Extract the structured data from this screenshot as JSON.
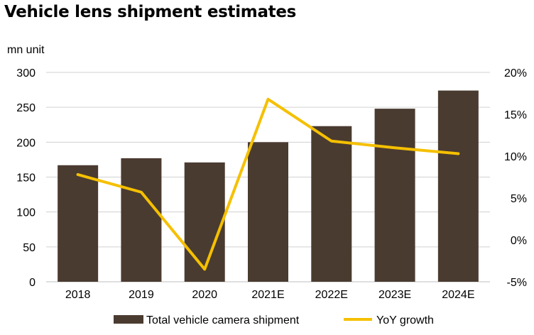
{
  "chart_data": {
    "type": "bar",
    "title": "Vehicle lens shipment estimates",
    "ylabel": "mn unit",
    "categories": [
      "2018",
      "2019",
      "2020",
      "2021E",
      "2022E",
      "2023E",
      "2024E"
    ],
    "series": [
      {
        "name": "Total vehicle camera shipment",
        "type": "bar",
        "axis": "left",
        "values": [
          167,
          177,
          171,
          200,
          223,
          248,
          274
        ],
        "color": "#4a3b30"
      },
      {
        "name": "YoY growth",
        "type": "line",
        "axis": "right",
        "values": [
          7.8,
          5.7,
          -3.5,
          16.8,
          11.8,
          11.0,
          10.3
        ],
        "color": "#f5c000"
      }
    ],
    "ylim": [
      0,
      300
    ],
    "yticks": [
      0,
      50,
      100,
      150,
      200,
      250,
      300
    ],
    "y2lim": [
      -5,
      20
    ],
    "y2ticks": [
      -5,
      0,
      5,
      10,
      15,
      20
    ],
    "y2_tick_suffix": "%",
    "grid": true,
    "legend_position": "bottom"
  }
}
